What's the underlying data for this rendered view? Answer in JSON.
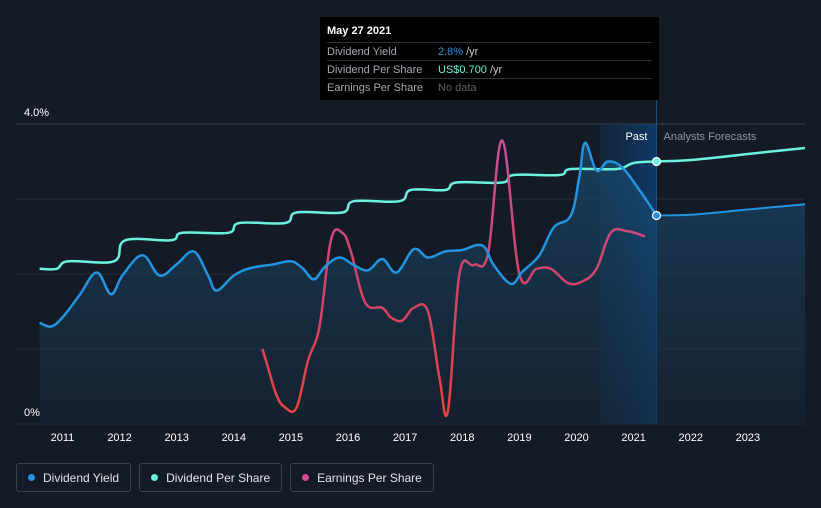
{
  "chart_data": {
    "type": "line",
    "ylim": [
      0,
      4.0
    ],
    "y_tick_labels": [
      "4.0%",
      "0%"
    ],
    "x_tick_labels": [
      "2011",
      "2012",
      "2013",
      "2014",
      "2015",
      "2016",
      "2017",
      "2018",
      "2019",
      "2020",
      "2021",
      "2022",
      "2023"
    ],
    "xlim": [
      2010.6,
      2024.0
    ],
    "forecast_start": 2021.4,
    "forecast_band_start": 2020.4,
    "region_labels": {
      "past": "Past",
      "forecast": "Analysts Forecasts"
    },
    "series": [
      {
        "name": "Dividend Yield",
        "color": "#2394df",
        "area": true,
        "points": [
          [
            2010.6,
            1.35
          ],
          [
            2010.8,
            1.3
          ],
          [
            2011.0,
            1.42
          ],
          [
            2011.3,
            1.72
          ],
          [
            2011.6,
            2.02
          ],
          [
            2011.85,
            1.73
          ],
          [
            2012.05,
            1.98
          ],
          [
            2012.4,
            2.25
          ],
          [
            2012.7,
            1.98
          ],
          [
            2013.0,
            2.13
          ],
          [
            2013.3,
            2.3
          ],
          [
            2013.55,
            1.98
          ],
          [
            2013.7,
            1.78
          ],
          [
            2014.0,
            1.98
          ],
          [
            2014.3,
            2.08
          ],
          [
            2014.7,
            2.13
          ],
          [
            2015.0,
            2.17
          ],
          [
            2015.2,
            2.08
          ],
          [
            2015.4,
            1.93
          ],
          [
            2015.6,
            2.1
          ],
          [
            2015.85,
            2.22
          ],
          [
            2016.1,
            2.12
          ],
          [
            2016.35,
            2.05
          ],
          [
            2016.6,
            2.2
          ],
          [
            2016.85,
            2.02
          ],
          [
            2017.15,
            2.33
          ],
          [
            2017.4,
            2.22
          ],
          [
            2017.7,
            2.3
          ],
          [
            2018.0,
            2.32
          ],
          [
            2018.35,
            2.38
          ],
          [
            2018.55,
            2.12
          ],
          [
            2018.85,
            1.87
          ],
          [
            2019.05,
            2.03
          ],
          [
            2019.35,
            2.25
          ],
          [
            2019.6,
            2.62
          ],
          [
            2019.9,
            2.78
          ],
          [
            2020.05,
            3.3
          ],
          [
            2020.15,
            3.75
          ],
          [
            2020.35,
            3.38
          ],
          [
            2020.55,
            3.5
          ],
          [
            2020.8,
            3.42
          ],
          [
            2021.1,
            3.12
          ],
          [
            2021.4,
            2.78
          ]
        ]
      },
      {
        "name": "Dividend Per Share",
        "color": "#6bf2dc",
        "area": false,
        "points": [
          [
            2010.6,
            2.07
          ],
          [
            2010.9,
            2.07
          ],
          [
            2011.1,
            2.17
          ],
          [
            2011.9,
            2.17
          ],
          [
            2012.1,
            2.45
          ],
          [
            2012.9,
            2.45
          ],
          [
            2013.1,
            2.55
          ],
          [
            2013.9,
            2.55
          ],
          [
            2014.1,
            2.68
          ],
          [
            2014.9,
            2.68
          ],
          [
            2015.1,
            2.82
          ],
          [
            2015.9,
            2.82
          ],
          [
            2016.1,
            2.97
          ],
          [
            2016.9,
            2.97
          ],
          [
            2017.1,
            3.12
          ],
          [
            2017.7,
            3.12
          ],
          [
            2017.9,
            3.22
          ],
          [
            2018.7,
            3.22
          ],
          [
            2018.9,
            3.32
          ],
          [
            2019.7,
            3.32
          ],
          [
            2019.9,
            3.4
          ],
          [
            2020.7,
            3.4
          ],
          [
            2021.0,
            3.48
          ],
          [
            2021.4,
            3.5
          ],
          [
            2022.0,
            3.52
          ],
          [
            2023.0,
            3.6
          ],
          [
            2024.0,
            3.68
          ]
        ]
      },
      {
        "name": "Earnings Per Share",
        "color": "#d74a8f",
        "area": false,
        "gradient": [
          "#e8433e",
          "#b85fc4"
        ],
        "points": [
          [
            2014.5,
            1.0
          ],
          [
            2014.6,
            0.75
          ],
          [
            2014.75,
            0.38
          ],
          [
            2014.9,
            0.22
          ],
          [
            2015.1,
            0.22
          ],
          [
            2015.3,
            0.85
          ],
          [
            2015.5,
            1.3
          ],
          [
            2015.7,
            2.45
          ],
          [
            2015.9,
            2.55
          ],
          [
            2016.05,
            2.3
          ],
          [
            2016.3,
            1.62
          ],
          [
            2016.6,
            1.55
          ],
          [
            2016.75,
            1.42
          ],
          [
            2016.95,
            1.38
          ],
          [
            2017.15,
            1.55
          ],
          [
            2017.4,
            1.5
          ],
          [
            2017.6,
            0.62
          ],
          [
            2017.75,
            0.18
          ],
          [
            2017.95,
            2.0
          ],
          [
            2018.2,
            2.12
          ],
          [
            2018.45,
            2.27
          ],
          [
            2018.7,
            3.78
          ],
          [
            2019.0,
            2.0
          ],
          [
            2019.3,
            2.07
          ],
          [
            2019.55,
            2.07
          ],
          [
            2019.85,
            1.88
          ],
          [
            2020.1,
            1.9
          ],
          [
            2020.35,
            2.07
          ],
          [
            2020.6,
            2.55
          ],
          [
            2020.9,
            2.57
          ],
          [
            2021.2,
            2.5
          ]
        ]
      }
    ],
    "markers": [
      {
        "series": "Dividend Per Share",
        "x": 2021.4,
        "y": 3.5
      },
      {
        "series": "Dividend Yield",
        "x": 2021.4,
        "y": 2.78
      }
    ],
    "forecast_yield": [
      [
        2021.4,
        2.78
      ],
      [
        2022.0,
        2.79
      ],
      [
        2023.0,
        2.86
      ],
      [
        2024.0,
        2.93
      ]
    ]
  },
  "tooltip": {
    "date": "May 27 2021",
    "rows": [
      {
        "label": "Dividend Yield",
        "value": "2.8%",
        "unit": "/yr"
      },
      {
        "label": "Dividend Per Share",
        "value": "US$0.700",
        "unit": "/yr"
      },
      {
        "label": "Earnings Per Share",
        "value": "No data",
        "unit": ""
      }
    ]
  },
  "legend": {
    "items": [
      {
        "label": "Dividend Yield",
        "color": "#2394df"
      },
      {
        "label": "Dividend Per Share",
        "color": "#6bf2dc"
      },
      {
        "label": "Earnings Per Share",
        "color": "#d74a8f"
      }
    ]
  }
}
